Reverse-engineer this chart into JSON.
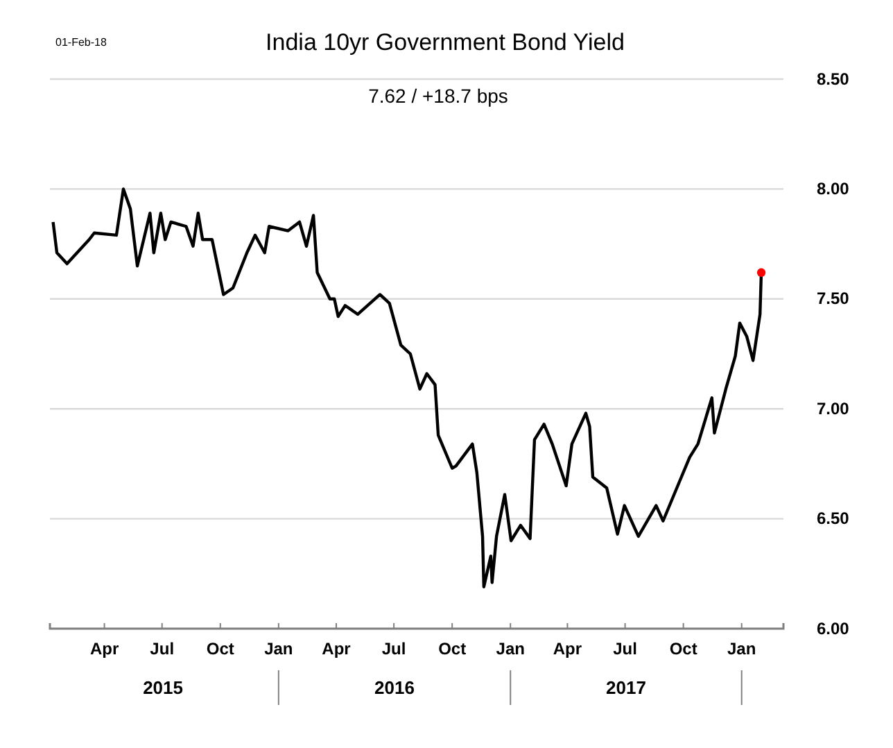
{
  "chart_data": {
    "type": "line",
    "title": "India 10yr Government Bond Yield",
    "subtitle": "7.62  /  +18.7 bps",
    "annotations": [
      "01-Feb-18",
      "2015",
      "2016",
      "2017"
    ],
    "xlim": [
      "2015-01-05",
      "2018-03-08"
    ],
    "xticks": [
      {
        "value": "2015-04-01",
        "label": "Apr"
      },
      {
        "value": "2015-07-01",
        "label": "Jul"
      },
      {
        "value": "2015-10-01",
        "label": "Oct"
      },
      {
        "value": "2016-01-01",
        "label": "Jan"
      },
      {
        "value": "2016-04-01",
        "label": "Apr"
      },
      {
        "value": "2016-07-01",
        "label": "Jul"
      },
      {
        "value": "2016-10-01",
        "label": "Oct"
      },
      {
        "value": "2017-01-01",
        "label": "Jan"
      },
      {
        "value": "2017-04-01",
        "label": "Apr"
      },
      {
        "value": "2017-07-01",
        "label": "Jul"
      },
      {
        "value": "2017-10-01",
        "label": "Oct"
      },
      {
        "value": "2018-01-01",
        "label": "Jan"
      }
    ],
    "ylim": [
      6,
      8.5
    ],
    "yticks": [
      {
        "value": 6,
        "label": "6.00"
      },
      {
        "value": 6.5,
        "label": "6.50"
      },
      {
        "value": 7,
        "label": "7.00"
      },
      {
        "value": 7.5,
        "label": "7.50"
      },
      {
        "value": 8,
        "label": "8.00"
      },
      {
        "value": 8.5,
        "label": "8.50"
      }
    ],
    "grid": "y",
    "series": [
      {
        "color": "#000000",
        "marker": "none",
        "line_style": "solid",
        "x": [
          "2015-01-10",
          "2015-01-16",
          "2015-02-01",
          "2015-03-08",
          "2015-03-16",
          "2015-04-20",
          "2015-05-01",
          "2015-05-12",
          "2015-05-23",
          "2015-06-12",
          "2015-06-18",
          "2015-06-29",
          "2015-07-06",
          "2015-07-15",
          "2015-08-08",
          "2015-08-19",
          "2015-08-27",
          "2015-09-03",
          "2015-09-18",
          "2015-10-06",
          "2015-10-21",
          "2015-11-12",
          "2015-11-25",
          "2015-12-10",
          "2015-12-17",
          "2016-01-16",
          "2016-02-03",
          "2016-02-14",
          "2016-02-25",
          "2016-03-02",
          "2016-03-22",
          "2016-03-29",
          "2016-04-04",
          "2016-04-15",
          "2016-05-05",
          "2016-06-09",
          "2016-06-24",
          "2016-07-12",
          "2016-07-27",
          "2016-08-11",
          "2016-08-22",
          "2016-09-04",
          "2016-09-09",
          "2016-10-01",
          "2016-10-07",
          "2016-11-02",
          "2016-11-09",
          "2016-11-18",
          "2016-11-20",
          "2016-12-01",
          "2016-12-03",
          "2016-12-10",
          "2016-12-23",
          "2017-01-02",
          "2017-01-17",
          "2017-02-01",
          "2017-02-08",
          "2017-02-23",
          "2017-03-08",
          "2017-03-30",
          "2017-04-08",
          "2017-04-30",
          "2017-05-06",
          "2017-05-11",
          "2017-06-02",
          "2017-06-19",
          "2017-06-30",
          "2017-07-22",
          "2017-08-19",
          "2017-08-30",
          "2017-09-25",
          "2017-10-11",
          "2017-10-24",
          "2017-11-15",
          "2017-11-19",
          "2017-12-07",
          "2017-12-22",
          "2017-12-29",
          "2018-01-09",
          "2018-01-19",
          "2018-01-30",
          "2018-02-01"
        ],
        "values": [
          7.85,
          7.71,
          7.66,
          7.77,
          7.8,
          7.79,
          8.0,
          7.91,
          7.65,
          7.89,
          7.71,
          7.89,
          7.77,
          7.85,
          7.83,
          7.74,
          7.89,
          7.77,
          7.77,
          7.52,
          7.55,
          7.71,
          7.79,
          7.71,
          7.83,
          7.81,
          7.85,
          7.74,
          7.88,
          7.62,
          7.5,
          7.5,
          7.42,
          7.47,
          7.43,
          7.52,
          7.48,
          7.29,
          7.25,
          7.09,
          7.16,
          7.11,
          6.88,
          6.73,
          6.74,
          6.84,
          6.71,
          6.42,
          6.19,
          6.33,
          6.21,
          6.42,
          6.61,
          6.4,
          6.47,
          6.41,
          6.86,
          6.93,
          6.84,
          6.65,
          6.84,
          6.98,
          6.92,
          6.69,
          6.64,
          6.43,
          6.56,
          6.42,
          6.56,
          6.49,
          6.67,
          6.78,
          6.84,
          7.05,
          6.89,
          7.09,
          7.24,
          7.39,
          7.33,
          7.22,
          7.43,
          7.62
        ]
      },
      {
        "type": "scatter",
        "color": "#ff0000",
        "marker": "circle",
        "x": [
          "2018-02-01"
        ],
        "values": [
          7.62
        ]
      }
    ]
  }
}
